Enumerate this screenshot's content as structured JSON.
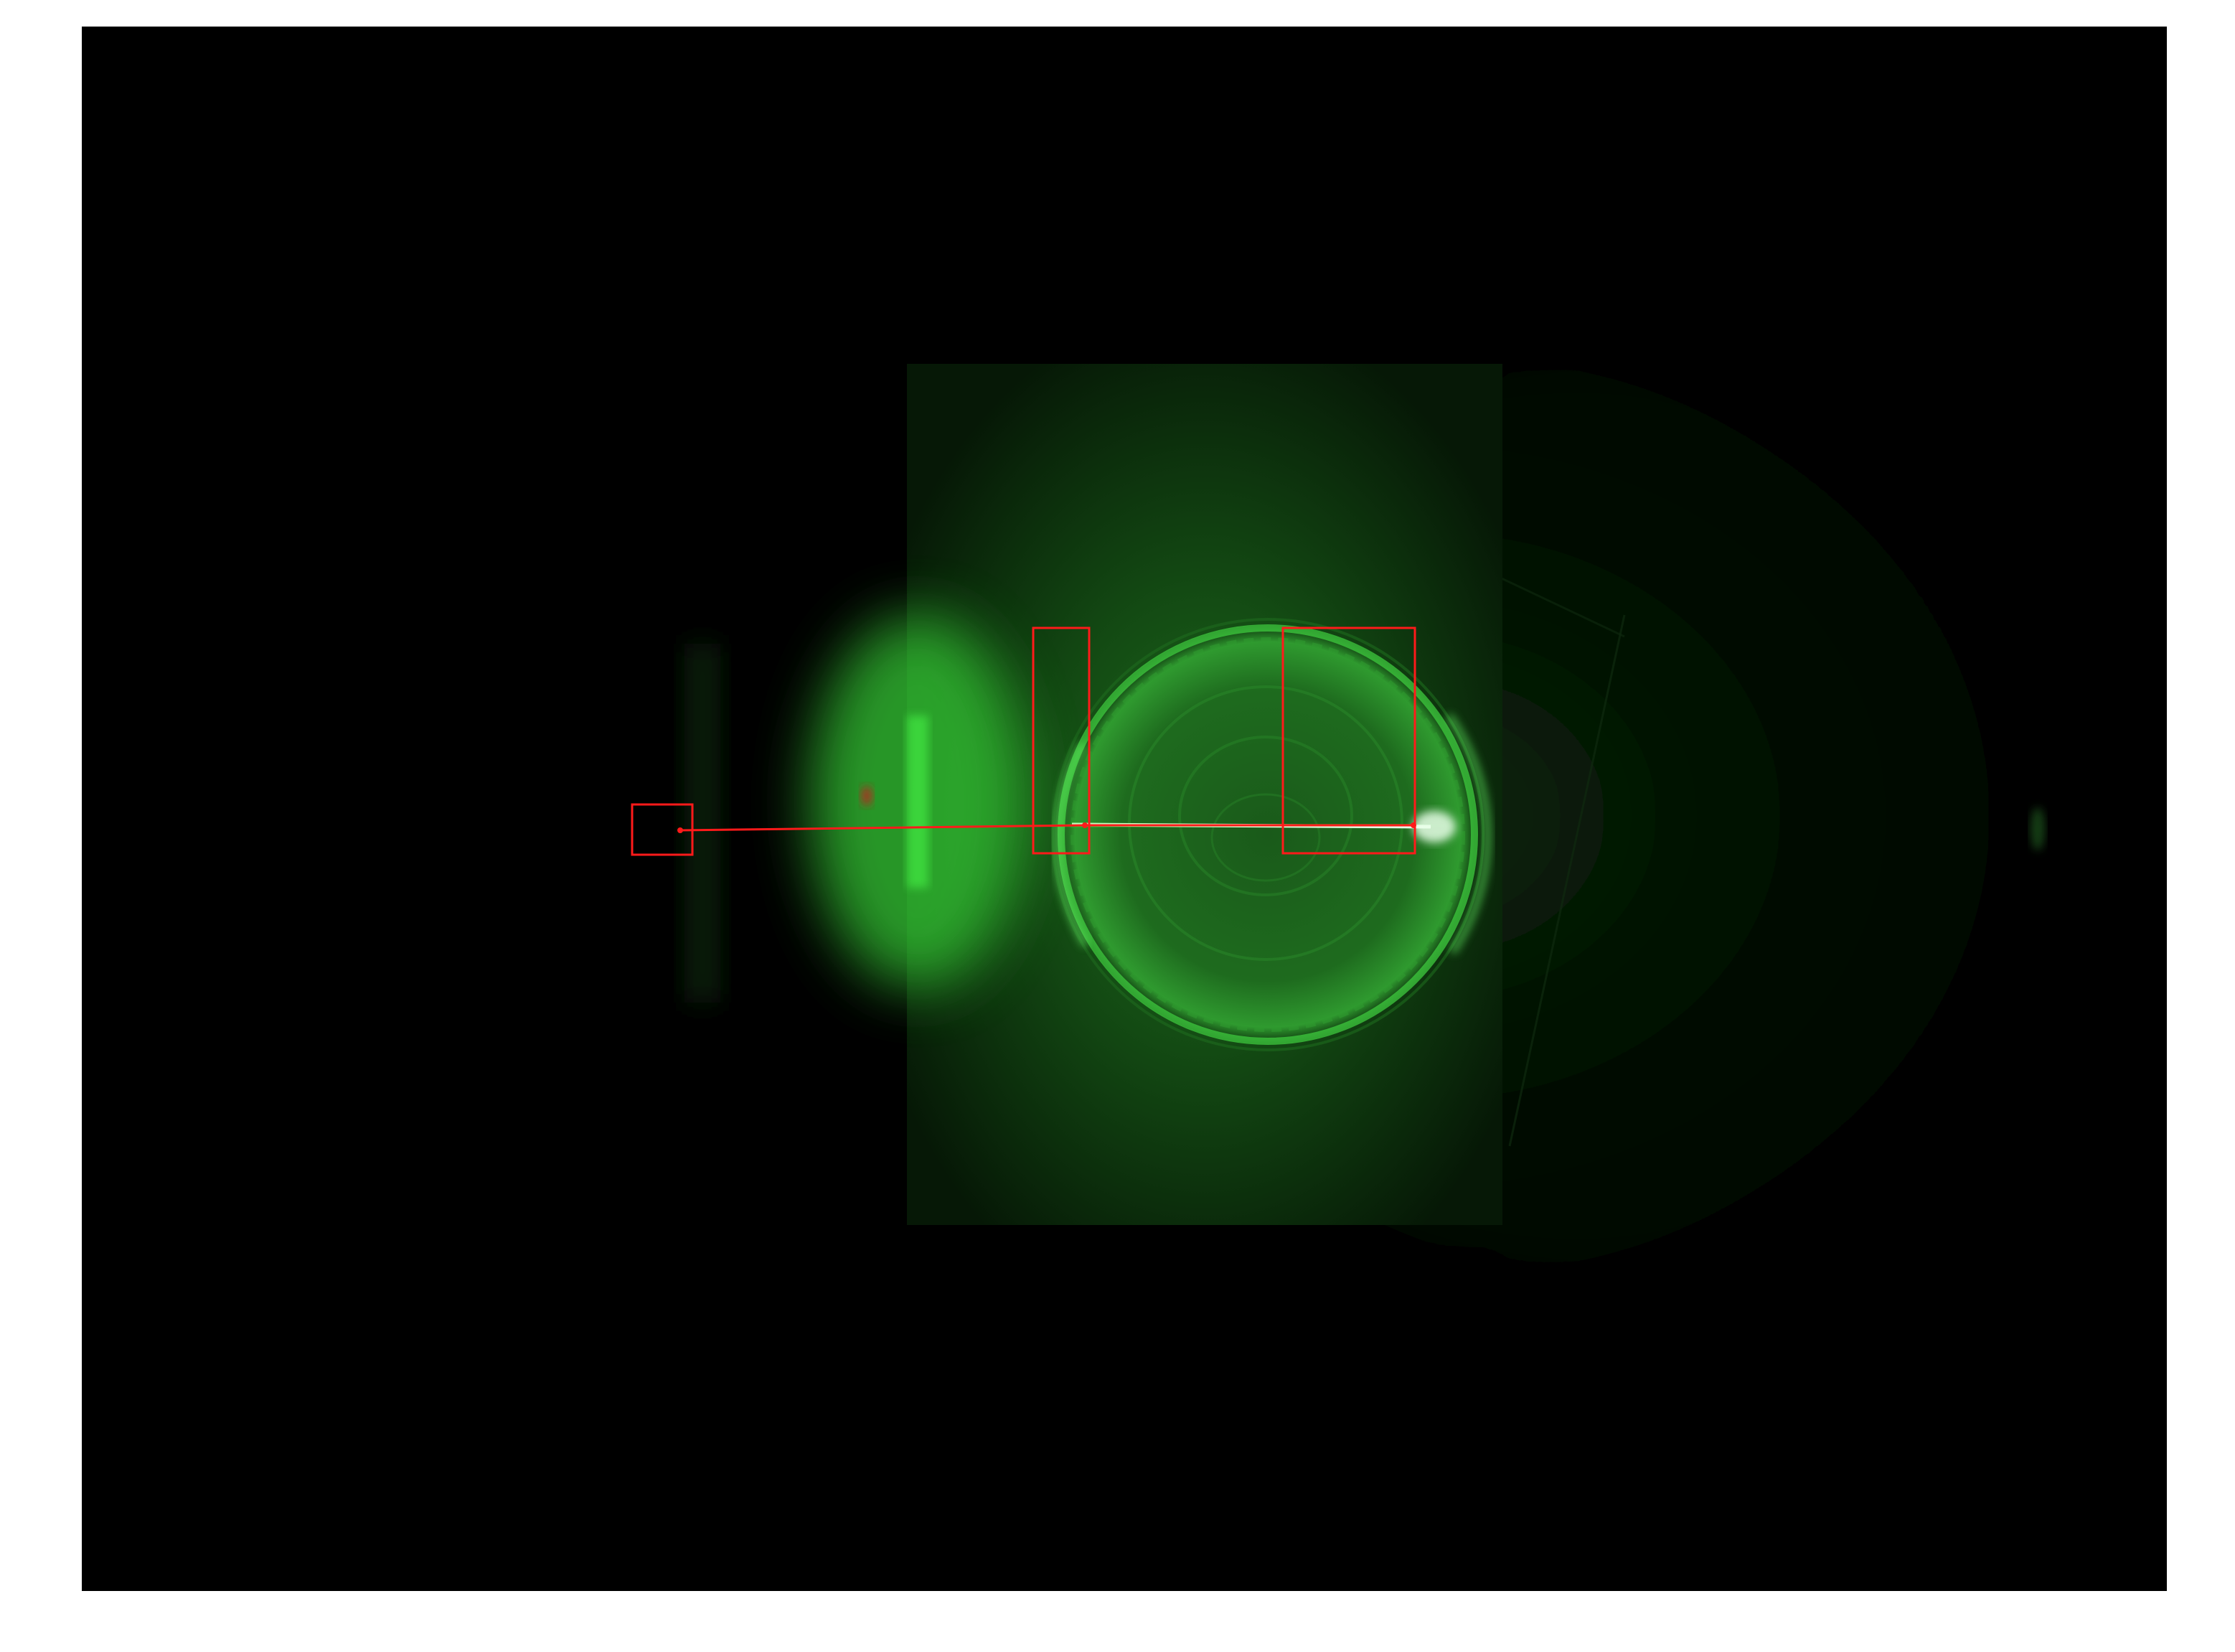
{
  "image": {
    "subject": "laser-beam-through-circular-dish",
    "background_color": "#000000",
    "page_color": "#ffffff",
    "glow_color": "#2fd12f",
    "bright_green": "#7dff7d",
    "card_color": "#0f3a0f",
    "annotation_color": "#ff1a1a"
  },
  "annotations": {
    "box_count": 3,
    "line_count": 2,
    "point_count": 3
  }
}
